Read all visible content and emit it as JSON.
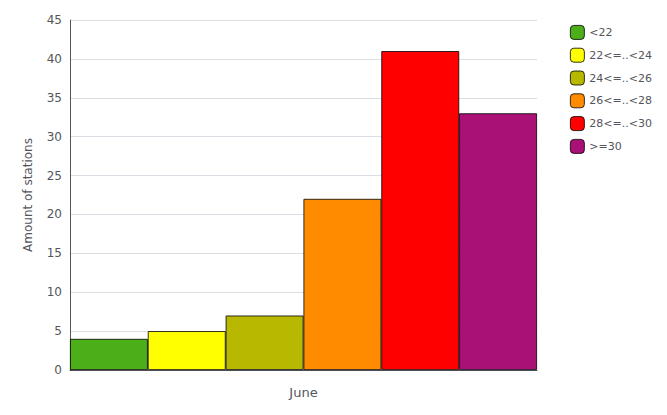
{
  "chart_data": {
    "type": "bar",
    "xlabel": "June",
    "ylabel": "Amount of stations",
    "categories": [
      "<22",
      "22<=..<24",
      "24<=..<26",
      "26<=..<28",
      "28<=..<30",
      ">=30"
    ],
    "values": [
      4,
      5,
      7,
      22,
      41,
      33
    ],
    "colors": [
      "#4caf1a",
      "#ffff00",
      "#b8b800",
      "#ff8c00",
      "#ff0000",
      "#aa1177"
    ],
    "ylim": [
      0,
      45
    ],
    "yticks": [
      0,
      5,
      10,
      15,
      20,
      25,
      30,
      35,
      40,
      45
    ],
    "grid": true,
    "legend": "upper right",
    "tick_labels": "y"
  }
}
